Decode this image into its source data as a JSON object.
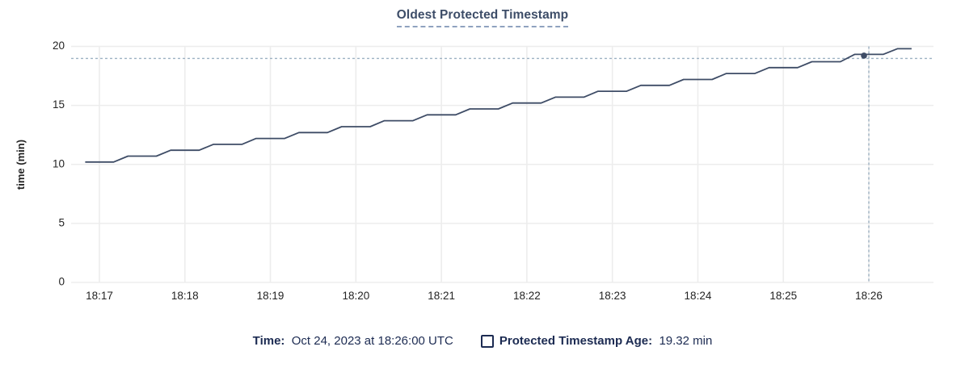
{
  "header": {
    "title": "Oldest Protected Timestamp"
  },
  "chart_data": {
    "type": "line",
    "title": "Oldest Protected Timestamp",
    "xlabel": "",
    "ylabel": "time (min)",
    "ylim": [
      0,
      20
    ],
    "yticks": [
      0,
      5,
      10,
      15,
      20
    ],
    "xticks": [
      "18:17",
      "18:18",
      "18:19",
      "18:20",
      "18:21",
      "18:22",
      "18:23",
      "18:24",
      "18:25",
      "18:26"
    ],
    "grid": true,
    "legend_position": "bottom",
    "series": [
      {
        "name": "Protected Timestamp Age",
        "unit": "min",
        "times": [
          "18:16:50",
          "18:17:00",
          "18:17:10",
          "18:17:20",
          "18:17:30",
          "18:17:40",
          "18:17:50",
          "18:18:00",
          "18:18:10",
          "18:18:20",
          "18:18:30",
          "18:18:40",
          "18:18:50",
          "18:19:00",
          "18:19:10",
          "18:19:20",
          "18:19:30",
          "18:19:40",
          "18:19:50",
          "18:20:00",
          "18:20:10",
          "18:20:20",
          "18:20:30",
          "18:20:40",
          "18:20:50",
          "18:21:00",
          "18:21:10",
          "18:21:20",
          "18:21:30",
          "18:21:40",
          "18:21:50",
          "18:22:00",
          "18:22:10",
          "18:22:20",
          "18:22:30",
          "18:22:40",
          "18:22:50",
          "18:23:00",
          "18:23:10",
          "18:23:20",
          "18:23:30",
          "18:23:40",
          "18:23:50",
          "18:24:00",
          "18:24:10",
          "18:24:20",
          "18:24:30",
          "18:24:40",
          "18:24:50",
          "18:25:00",
          "18:25:10",
          "18:25:20",
          "18:25:30",
          "18:25:40",
          "18:25:50",
          "18:26:00",
          "18:26:10",
          "18:26:20",
          "18:26:30"
        ],
        "values": [
          10.2,
          10.2,
          10.2,
          10.7,
          10.7,
          10.7,
          11.2,
          11.2,
          11.2,
          11.7,
          11.7,
          11.7,
          12.2,
          12.2,
          12.2,
          12.7,
          12.7,
          12.7,
          13.2,
          13.2,
          13.2,
          13.7,
          13.7,
          13.7,
          14.2,
          14.2,
          14.2,
          14.7,
          14.7,
          14.7,
          15.2,
          15.2,
          15.2,
          15.7,
          15.7,
          15.7,
          16.2,
          16.2,
          16.2,
          16.7,
          16.7,
          16.7,
          17.2,
          17.2,
          17.2,
          17.7,
          17.7,
          17.7,
          18.2,
          18.2,
          18.2,
          18.7,
          18.7,
          18.7,
          19.32,
          19.32,
          19.32,
          19.8,
          19.8
        ]
      }
    ],
    "hover_crosshair": {
      "time": "18:26:00",
      "value": 19.32
    }
  },
  "tooltip": {
    "time_label": "Time:",
    "time_value": "Oct 24, 2023 at 18:26:00 UTC",
    "series_label": "Protected Timestamp Age:",
    "series_value": "19.32 min"
  },
  "colors": {
    "line": "#3e4c66",
    "marker": "#3e4c66",
    "title_text": "#3d4d68",
    "title_underline": "#8fa2bf",
    "grid": "#ededed",
    "crosshair": "#9db1c2",
    "axis_text": "#242424",
    "tooltip_text": "#1c2b52",
    "background": "#ffffff"
  }
}
